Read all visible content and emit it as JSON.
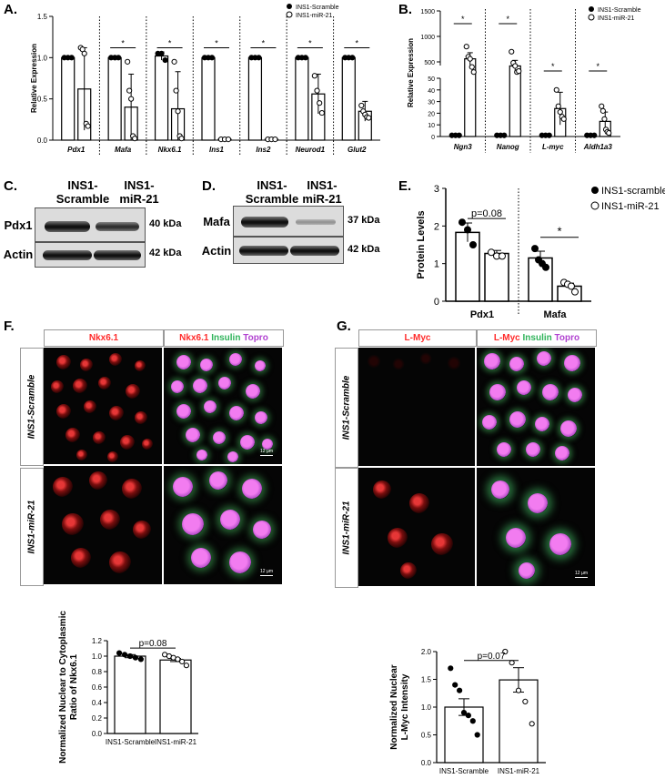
{
  "panels": {
    "A": "A.",
    "B": "B.",
    "C": "C.",
    "D": "D.",
    "E": "E.",
    "F": "F.",
    "G": "G."
  },
  "colors": {
    "red": "#ff2a2a",
    "green": "#2fb35a",
    "purple": "#b040d0"
  },
  "blots": {
    "C": {
      "lanes": [
        "INS1-\nScramble",
        "INS1-\nmiR-21"
      ],
      "rows": [
        {
          "label": "Pdx1",
          "kda": "40 kDa"
        },
        {
          "label": "Actin",
          "kda": "42 kDa"
        }
      ]
    },
    "D": {
      "lanes": [
        "INS1-\nScramble",
        "INS1-\nmiR-21"
      ],
      "rows": [
        {
          "label": "Mafa",
          "kda": "37 kDa"
        },
        {
          "label": "Actin",
          "kda": "42 kDa"
        }
      ]
    }
  },
  "micrographs": {
    "F": {
      "headers": [
        "Nkx6.1",
        "Nkx6.1",
        "Insulin",
        "Topro"
      ],
      "rows": [
        "INS1-Scramble",
        "INS1-miR-21"
      ],
      "scale": "12 µm"
    },
    "G": {
      "headers": [
        "L-Myc",
        "L-Myc",
        "Insulin",
        "Topro"
      ],
      "rows": [
        "INS1-Scramble",
        "INS1-miR-21"
      ],
      "scale": "12 µm"
    }
  },
  "chart_data": [
    {
      "panel": "A",
      "type": "bar",
      "ylabel": "Relative Expression",
      "ylim": [
        0,
        1.5
      ],
      "yticks": [
        "0.0",
        "0.5",
        "1.0",
        "1.5"
      ],
      "legend": [
        "INS1-Scramble",
        "INS1-miR-21"
      ],
      "categories": [
        "Pdx1",
        "Mafa",
        "Nkx6.1",
        "Ins1",
        "Ins2",
        "Neurod1",
        "Glut2"
      ],
      "series": [
        {
          "name": "INS1-Scramble",
          "values": [
            1.0,
            1.0,
            1.02,
            1.0,
            1.0,
            1.0,
            1.0
          ],
          "errors": [
            0.01,
            0.02,
            0.05,
            0.01,
            0.01,
            0.01,
            0.01
          ]
        },
        {
          "name": "INS1-miR-21",
          "values": [
            0.62,
            0.4,
            0.38,
            0.01,
            0.01,
            0.56,
            0.35
          ],
          "errors": [
            0.5,
            0.4,
            0.45,
            0.01,
            0.01,
            0.24,
            0.12
          ]
        }
      ],
      "points": [
        [
          [
            1,
            1,
            1
          ],
          [
            1.12,
            1.1,
            1.05,
            0.2,
            0.17
          ]
        ],
        [
          [
            1,
            1,
            1
          ],
          [
            0.95,
            0.6,
            0.5,
            0.05,
            0.02
          ]
        ],
        [
          [
            1.05,
            1.05,
            0.97
          ],
          [
            0.95,
            0.6,
            0.35,
            0.05,
            0.02
          ]
        ],
        [
          [
            1,
            1,
            1
          ],
          [
            0.01,
            0.01,
            0.01
          ]
        ],
        [
          [
            1,
            1,
            1
          ],
          [
            0.01,
            0.01,
            0.01
          ]
        ],
        [
          [
            1,
            1,
            1
          ],
          [
            0.78,
            0.6,
            0.45,
            0.33
          ]
        ],
        [
          [
            1,
            1,
            1
          ],
          [
            0.42,
            0.35,
            0.31,
            0.28,
            0.27
          ]
        ]
      ],
      "significance": [
        "",
        "*",
        "*",
        "*",
        "*",
        "*",
        "*"
      ]
    },
    {
      "panel": "B",
      "type": "bar",
      "ylabel": "Relative Expression",
      "yticks": [
        "0",
        "10",
        "20",
        "30",
        "40",
        "50",
        "500",
        "1000",
        "1500"
      ],
      "legend": [
        "INS1-Scramble",
        "INS1-miR-21"
      ],
      "categories": [
        "Ngn3",
        "Nanog",
        "L-myc",
        "Aldh1a3"
      ],
      "series": [
        {
          "name": "INS1-Scramble",
          "values": [
            1,
            1,
            1,
            1
          ]
        },
        {
          "name": "INS1-miR-21",
          "values": [
            560,
            420,
            24,
            13
          ],
          "errors": [
            120,
            110,
            14,
            8
          ]
        }
      ],
      "points": [
        [
          [
            1,
            1,
            1
          ],
          [
            800,
            600,
            560,
            400,
            300
          ]
        ],
        [
          [
            1,
            1,
            1
          ],
          [
            700,
            480,
            420,
            300,
            320
          ]
        ],
        [
          [
            1,
            1,
            1
          ],
          [
            40,
            26,
            21,
            17,
            15
          ]
        ],
        [
          [
            1,
            1,
            1
          ],
          [
            26,
            22,
            15,
            6,
            4,
            3
          ]
        ]
      ],
      "significance": [
        "*",
        "*",
        "*",
        "*"
      ]
    },
    {
      "panel": "E",
      "type": "bar",
      "ylabel": "Protein Levels",
      "ylim": [
        0,
        3
      ],
      "yticks": [
        "0",
        "1",
        "2",
        "3"
      ],
      "legend": [
        "INS1-scramble",
        "INS1-miR-21"
      ],
      "categories": [
        "Pdx1",
        "Mafa"
      ],
      "series": [
        {
          "name": "INS1-scramble",
          "values": [
            1.83,
            1.15
          ],
          "errors": [
            0.25,
            0.18
          ]
        },
        {
          "name": "INS1-miR-21",
          "values": [
            1.27,
            0.4
          ],
          "errors": [
            0.08,
            0.08
          ]
        }
      ],
      "points": [
        [
          [
            2.1,
            1.9,
            1.5
          ],
          [
            1.3,
            1.2,
            1.2
          ]
        ],
        [
          [
            1.4,
            1.1,
            1.0,
            0.9
          ],
          [
            0.5,
            0.45,
            0.4,
            0.25
          ]
        ]
      ],
      "annotations": [
        "p=0.08",
        "*"
      ]
    },
    {
      "panel": "F",
      "type": "bar",
      "ylabel": "Normalized Nuclear to Cytoplasmic Ratio of Nkx6.1",
      "ylim": [
        0,
        1.2
      ],
      "yticks": [
        "0.0",
        "0.2",
        "0.4",
        "0.6",
        "0.8",
        "1.0",
        "1.2"
      ],
      "categories": [
        "INS1-Scramble",
        "INS1-miR-21"
      ],
      "values": [
        1.0,
        0.95
      ],
      "errors": [
        0.02,
        0.02
      ],
      "points": [
        [
          1.04,
          1.02,
          1.0,
          0.98,
          0.96
        ],
        [
          1.02,
          1.0,
          0.98,
          0.96,
          0.93,
          0.88
        ]
      ],
      "annotations": [
        "p=0.08"
      ]
    },
    {
      "panel": "G",
      "type": "bar",
      "ylabel": "Normalized Nuclear L-Myc Intensity",
      "ylim": [
        0,
        2
      ],
      "yticks": [
        "0.0",
        "0.5",
        "1.0",
        "1.5",
        "2.0"
      ],
      "categories": [
        "INS1-Scramble",
        "INS1-miR-21"
      ],
      "values": [
        1.0,
        1.49
      ],
      "errors": [
        0.15,
        0.22
      ],
      "points": [
        [
          1.7,
          1.4,
          1.3,
          0.9,
          0.85,
          0.75,
          0.5
        ],
        [
          2.0,
          1.8,
          1.3,
          1.1,
          0.7
        ]
      ],
      "annotations": [
        "p=0.07"
      ]
    }
  ]
}
